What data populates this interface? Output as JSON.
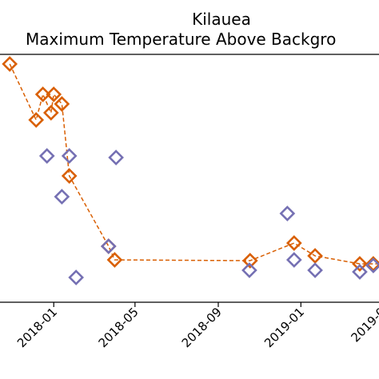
{
  "chart_data": {
    "type": "scatter",
    "title": "Kilauea",
    "subtitle": "Maximum Temperature Above Backgro",
    "xlabel": "",
    "ylabel": "",
    "x_tick_labels": [
      "2018-01",
      "2018-05",
      "2018-09",
      "2019-01",
      "2019-0"
    ],
    "x_tick_dates": [
      "2018-01-01",
      "2018-05-01",
      "2018-09-01",
      "2019-01-01",
      "2019-05-01"
    ],
    "xlim": [
      "2017-09-20",
      "2019-05-20"
    ],
    "ylim": [
      0,
      310
    ],
    "grid": false,
    "legend": "none",
    "series": [
      {
        "color": "#d95f02",
        "marker": "diamond",
        "connected": "dashed",
        "points": [
          {
            "x": "2017-10-28",
            "y": 298
          },
          {
            "x": "2017-12-06",
            "y": 228
          },
          {
            "x": "2017-12-16",
            "y": 260
          },
          {
            "x": "2017-12-28",
            "y": 237
          },
          {
            "x": "2018-01-01",
            "y": 260
          },
          {
            "x": "2018-01-13",
            "y": 248
          },
          {
            "x": "2018-01-24",
            "y": 158
          },
          {
            "x": "2018-03-23",
            "y": 70
          },
          {
            "x": "2018-04-01",
            "y": 53
          },
          {
            "x": "2018-10-18",
            "y": 52
          },
          {
            "x": "2018-12-22",
            "y": 74
          },
          {
            "x": "2019-01-22",
            "y": 58
          },
          {
            "x": "2019-03-29",
            "y": 48
          },
          {
            "x": "2019-04-18",
            "y": 48
          },
          {
            "x": "2019-05-10",
            "y": 48
          },
          {
            "x": "2019-05-18",
            "y": 48
          }
        ]
      },
      {
        "color": "#7570b3",
        "marker": "diamond",
        "connected": "none",
        "points": [
          {
            "x": "2017-12-22",
            "y": 183
          },
          {
            "x": "2018-01-13",
            "y": 132
          },
          {
            "x": "2018-01-24",
            "y": 183
          },
          {
            "x": "2018-02-03",
            "y": 31
          },
          {
            "x": "2018-03-23",
            "y": 70
          },
          {
            "x": "2018-04-03",
            "y": 181
          },
          {
            "x": "2018-10-17",
            "y": 40
          },
          {
            "x": "2018-12-12",
            "y": 111
          },
          {
            "x": "2018-12-22",
            "y": 53
          },
          {
            "x": "2019-01-22",
            "y": 40
          },
          {
            "x": "2019-03-29",
            "y": 38
          },
          {
            "x": "2019-04-18",
            "y": 46
          },
          {
            "x": "2019-05-10",
            "y": 30
          },
          {
            "x": "2019-05-18",
            "y": 42
          }
        ]
      }
    ]
  }
}
